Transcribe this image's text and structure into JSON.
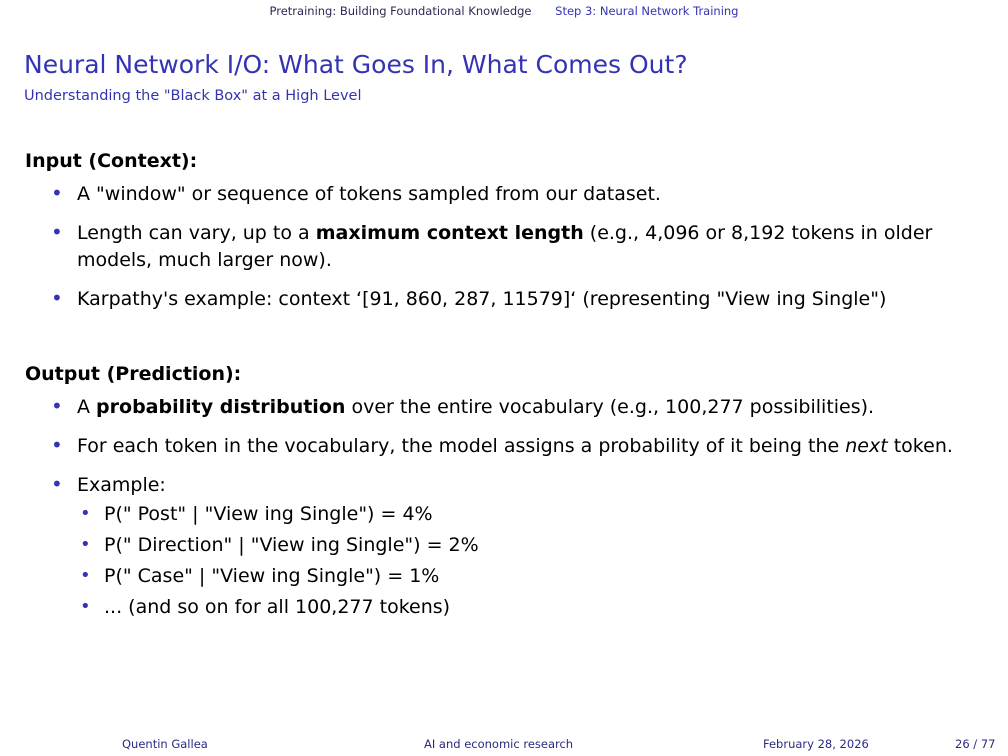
{
  "header": {
    "section": "Pretraining: Building Foundational Knowledge",
    "subsection": "Step 3: Neural Network Training"
  },
  "slide": {
    "title": "Neural Network I/O: What Goes In, What Comes Out?",
    "subtitle": "Understanding the \"Black Box\" at a High Level"
  },
  "input": {
    "heading": "Input (Context):",
    "b1": "A \"window\" or sequence of tokens sampled from our dataset.",
    "b2_pre": "Length can vary, up to a ",
    "b2_bold": "maximum context length",
    "b2_post": " (e.g., 4,096 or 8,192 tokens in older models, much larger now).",
    "b3": "Karpathy's example: context ‘[91, 860, 287, 11579]‘ (representing \"View ing Single\")"
  },
  "output": {
    "heading": "Output (Prediction):",
    "b1_pre": "A ",
    "b1_bold": "probability distribution",
    "b1_post": " over the entire vocabulary (e.g., 100,277 possibilities).",
    "b2_pre": "For each token in the vocabulary, the model assigns a probability of it being the ",
    "b2_em": "next",
    "b2_post": " token.",
    "b3": "Example:",
    "examples": [
      "P(\" Post\" | \"View ing Single\") = 4%",
      "P(\" Direction\" | \"View ing Single\") = 2%",
      "P(\" Case\" | \"View ing Single\") = 1%",
      "... (and so on for all 100,277 tokens)"
    ]
  },
  "footer": {
    "author": "Quentin Gallea",
    "talk": "AI and economic research",
    "date": "February 28, 2026",
    "page": "26 / 77"
  }
}
